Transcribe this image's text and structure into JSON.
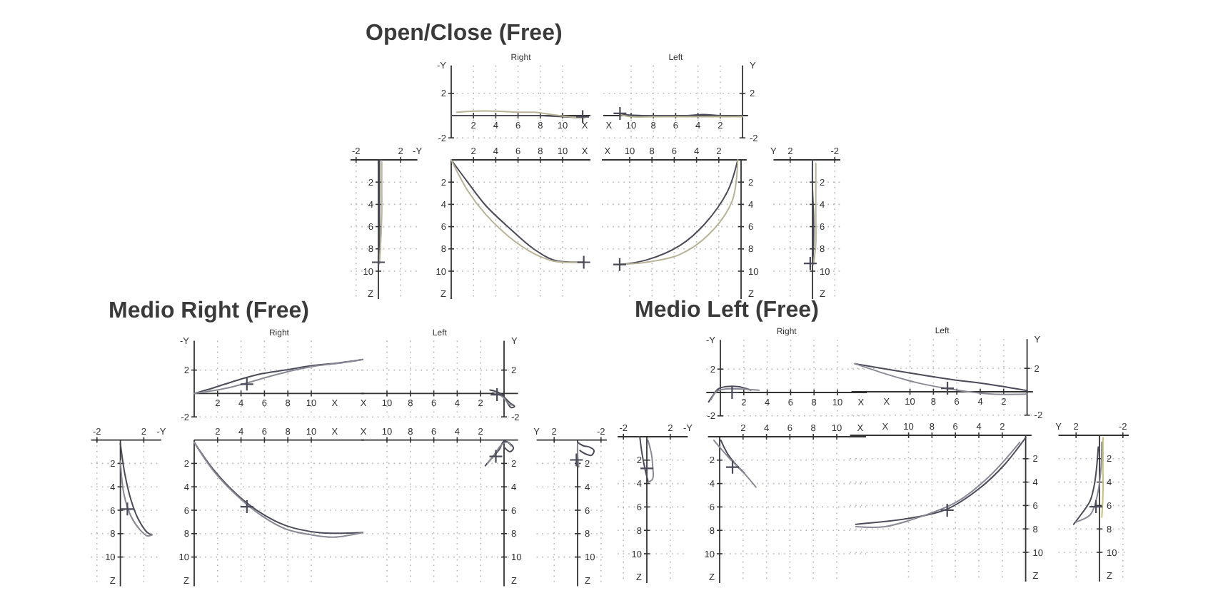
{
  "chart_data": [
    {
      "type": "line",
      "title": "Open/Close (Free)",
      "subtitle": "Right",
      "xlabel": "X",
      "ylabel": "-Y",
      "xlim": [
        0,
        12.5
      ],
      "ylim": [
        -2,
        4.5
      ],
      "xticks": [
        2,
        4,
        6,
        8,
        10
      ],
      "yticks": [
        -2,
        2
      ],
      "grid": true,
      "series": [
        {
          "color": "#4b4b5a",
          "x": [
            0,
            2,
            4,
            6,
            8,
            10,
            12
          ],
          "values": [
            0,
            0,
            0,
            0,
            0,
            -0.1,
            -0.2
          ]
        },
        {
          "color": "#b8b296",
          "x": [
            0.5,
            2,
            4,
            6,
            7.5,
            9,
            10.5,
            12
          ],
          "values": [
            0.3,
            0.4,
            0.4,
            0.3,
            0.3,
            0.1,
            -0.1,
            -0.2
          ]
        },
        {
          "type": "scatter",
          "marker": "cross",
          "color": "#4b4b5a",
          "x": [
            11.8
          ],
          "values": [
            -0.1
          ]
        }
      ]
    },
    {
      "type": "line",
      "title": "Left",
      "xlabel": "X",
      "ylabel": "Y",
      "xlim": [
        12.5,
        -0.5
      ],
      "ylim": [
        -2,
        4.5
      ],
      "xticks": [
        10,
        8,
        6,
        4,
        2
      ],
      "yticks": [
        -2,
        2
      ],
      "grid": true,
      "series": [
        {
          "color": "#4b4b5a",
          "x": [
            0,
            2,
            3.5,
            5,
            7,
            9,
            11
          ],
          "values": [
            0,
            0,
            0.1,
            0,
            0,
            0,
            0.1
          ]
        },
        {
          "color": "#b8b296",
          "x": [
            0,
            2,
            4,
            6,
            8,
            10,
            11
          ],
          "values": [
            -0.1,
            -0.1,
            -0.1,
            -0.1,
            -0.1,
            -0.1,
            0.1
          ]
        },
        {
          "type": "scatter",
          "marker": "cross",
          "color": "#4b4b5a",
          "x": [
            11
          ],
          "values": [
            0.2
          ]
        }
      ]
    },
    {
      "type": "line",
      "xlabel": "-Y",
      "ylabel": "Z",
      "xlim": [
        -2.5,
        3.5
      ],
      "ylim": [
        12.5,
        0
      ],
      "xticks": [
        -2,
        2
      ],
      "yticks": [
        2,
        4,
        6,
        8,
        10
      ],
      "grid": true,
      "series": [
        {
          "color": "#4b4b5a",
          "x": [
            0.1,
            0.1,
            0.1,
            0.1,
            0
          ],
          "values": [
            0,
            2.5,
            5,
            7.5,
            9.5
          ]
        },
        {
          "color": "#b8b296",
          "x": [
            0.3,
            0.3,
            0.3,
            0.2,
            0.1
          ],
          "values": [
            0.2,
            2.5,
            5,
            7.5,
            9.3
          ]
        },
        {
          "type": "scatter",
          "marker": "cross",
          "color": "#4b4b5a",
          "x": [
            0
          ],
          "values": [
            9.2
          ]
        }
      ]
    },
    {
      "type": "line",
      "xlabel": "X",
      "ylabel": "Z",
      "xlim": [
        0,
        12.5
      ],
      "ylim": [
        12.5,
        0
      ],
      "xticks": [
        2,
        4,
        6,
        8,
        10
      ],
      "yticks": [
        2,
        4,
        6,
        8,
        10
      ],
      "grid": true,
      "series": [
        {
          "color": "#4b4b5a",
          "x": [
            0,
            1.4,
            3.1,
            5.3,
            7.4,
            9.2,
            11.9
          ],
          "values": [
            0,
            1.9,
            4.1,
            6.2,
            8,
            9,
            9.2
          ]
        },
        {
          "color": "#b8b296",
          "x": [
            0,
            1.5,
            3.1,
            5.3,
            7.4,
            9.2,
            11.9
          ],
          "values": [
            0,
            2.8,
            4.9,
            7,
            8.4,
            9.1,
            9.2
          ]
        },
        {
          "type": "scatter",
          "marker": "cross",
          "color": "#4b4b5a",
          "x": [
            11.9
          ],
          "values": [
            9.2
          ]
        }
      ]
    },
    {
      "type": "line",
      "xlabel": "X",
      "ylabel": "Z",
      "xlim": [
        12.5,
        -0.5
      ],
      "ylim": [
        12.5,
        0
      ],
      "xticks": [
        10,
        8,
        6,
        4,
        2
      ],
      "yticks": [
        2,
        4,
        6,
        8,
        10
      ],
      "grid": true,
      "series": [
        {
          "color": "#4b4b5a",
          "x": [
            0.3,
            1.2,
            3.3,
            5.5,
            8.5,
            10.9
          ],
          "values": [
            0,
            2.8,
            5.8,
            7.7,
            9,
            9.4
          ]
        },
        {
          "color": "#b8b296",
          "x": [
            0.3,
            0.8,
            2.9,
            5.5,
            8.5,
            10.9
          ],
          "values": [
            0,
            3.7,
            6.7,
            8.5,
            9.2,
            9.4
          ]
        },
        {
          "type": "scatter",
          "marker": "cross",
          "color": "#4b4b5a",
          "x": [
            10.9
          ],
          "values": [
            9.4
          ]
        }
      ]
    },
    {
      "type": "line",
      "xlabel": "Y",
      "ylabel": "Z",
      "xlim": [
        3.5,
        -2.5
      ],
      "ylim": [
        12.5,
        0
      ],
      "xticks": [
        2,
        -2
      ],
      "yticks": [
        2,
        4,
        6,
        8,
        10
      ],
      "grid": true,
      "series": [
        {
          "color": "#4b4b5a",
          "x": [
            0,
            0,
            -0.1,
            -0.1,
            0
          ],
          "values": [
            0,
            2.5,
            5,
            7.5,
            9.6
          ]
        },
        {
          "color": "#b8b296",
          "x": [
            -0.3,
            -0.3,
            -0.3,
            -0.3,
            -0.1
          ],
          "values": [
            0.3,
            2.5,
            5,
            7.5,
            9.4
          ]
        },
        {
          "type": "scatter",
          "marker": "cross",
          "color": "#4b4b5a",
          "x": [
            0.2
          ],
          "values": [
            9.3
          ]
        }
      ]
    },
    {
      "type": "line",
      "title": "Medio Right (Free)",
      "subtitle": "Right",
      "xlabel": "X",
      "ylabel": "-Y",
      "xlim": [
        0,
        14.5
      ],
      "ylim": [
        -2,
        4.5
      ],
      "xticks": [
        2,
        4,
        6,
        8,
        10
      ],
      "yticks": [
        -2,
        2
      ],
      "grid": true,
      "series": [
        {
          "color": "#4b4b5a",
          "x": [
            0,
            1.7,
            3.9,
            5.8,
            7.8,
            10.2,
            12.3,
            14.4
          ],
          "values": [
            0,
            0.5,
            1.2,
            1.7,
            2,
            2.4,
            2.6,
            2.9
          ]
        },
        {
          "color": "#8a8a96",
          "x": [
            0,
            2.5,
            4.5,
            6.6,
            8.6,
            10.7,
            12.5,
            14.4
          ],
          "values": [
            0,
            0.4,
            0.9,
            1.5,
            2,
            2.4,
            2.6,
            2.9
          ]
        },
        {
          "type": "scatter",
          "marker": "cross",
          "color": "#4b4b5a",
          "x": [
            4.5
          ],
          "values": [
            0.8
          ]
        }
      ]
    },
    {
      "type": "line",
      "title": "Left",
      "xlabel": "X",
      "ylabel": "Y",
      "xlim": [
        12.2,
        -1.2
      ],
      "ylim": [
        -2,
        4.5
      ],
      "xticks": [
        10,
        8,
        6,
        4,
        2
      ],
      "yticks": [
        -2,
        2
      ],
      "grid": true,
      "series": [
        {
          "color": "#4b4b5a",
          "x": [
            1.2,
            0.5,
            0,
            -0.5,
            -0.9,
            -0.6,
            -0.2
          ],
          "values": [
            0.3,
            0.1,
            -0.3,
            -0.8,
            -1.1,
            -1.2,
            -0.6
          ]
        },
        {
          "color": "#8a8a96",
          "x": [
            1,
            0.4,
            0,
            -0.4,
            -0.7
          ],
          "values": [
            0.1,
            -0.1,
            -0.4,
            -0.9,
            -1
          ]
        },
        {
          "type": "scatter",
          "marker": "cross",
          "color": "#4b4b5a",
          "x": [
            0.6
          ],
          "values": [
            -0.1
          ]
        }
      ]
    },
    {
      "type": "line",
      "xlabel": "-Y",
      "ylabel": "Z",
      "xlim": [
        -2.5,
        3.5
      ],
      "ylim": [
        12.5,
        0
      ],
      "xticks": [
        -2,
        2
      ],
      "yticks": [
        2,
        4,
        6,
        8,
        10
      ],
      "grid": true,
      "series": [
        {
          "color": "#4b4b5a",
          "x": [
            0,
            0.4,
            0.9,
            1.5,
            2.3,
            2.7
          ],
          "values": [
            0.3,
            3,
            5.1,
            6.7,
            7.9,
            8.1
          ]
        },
        {
          "color": "#8a8a96",
          "x": [
            0,
            0.3,
            0.9,
            1.7,
            2.3,
            2.7
          ],
          "values": [
            1.8,
            4.6,
            6.5,
            7.7,
            8.2,
            8.1
          ]
        },
        {
          "type": "scatter",
          "marker": "cross",
          "color": "#4b4b5a",
          "x": [
            0.6
          ],
          "values": [
            5.9
          ]
        }
      ]
    },
    {
      "type": "line",
      "xlabel": "X",
      "ylabel": "Z",
      "xlim": [
        0,
        14.5
      ],
      "ylim": [
        12.5,
        0
      ],
      "xticks": [
        2,
        4,
        6,
        8,
        10
      ],
      "yticks": [
        2,
        4,
        6,
        8,
        10
      ],
      "grid": true,
      "series": [
        {
          "color": "#4b4b5a",
          "x": [
            0,
            1.7,
            3.7,
            5.8,
            7.8,
            10.6,
            14.4
          ],
          "values": [
            0.2,
            2.6,
            4.7,
            6.3,
            7.3,
            7.9,
            7.9
          ]
        },
        {
          "color": "#8a8a96",
          "x": [
            0,
            1.7,
            3.7,
            5.8,
            7.8,
            10,
            11.9,
            14.4
          ],
          "values": [
            0.2,
            2.7,
            4.8,
            6.5,
            7.6,
            8.1,
            8.3,
            7.9
          ]
        },
        {
          "type": "scatter",
          "marker": "cross",
          "color": "#4b4b5a",
          "x": [
            4.5
          ],
          "values": [
            5.7
          ]
        }
      ]
    },
    {
      "type": "line",
      "xlabel": "X",
      "ylabel": "Z",
      "xlim": [
        12.2,
        -1.2
      ],
      "ylim": [
        12.5,
        0
      ],
      "xticks": [
        10,
        8,
        6,
        4,
        2
      ],
      "yticks": [
        2,
        4,
        6,
        8,
        10
      ],
      "grid": true,
      "series": [
        {
          "color": "#4b4b5a",
          "x": [
            1.6,
            1,
            0.4,
            0,
            -0.5,
            -0.8,
            -0.5,
            0
          ],
          "values": [
            2.2,
            1.5,
            0.8,
            0.1,
            0.3,
            0.7,
            1,
            0.6
          ]
        },
        {
          "color": "#8a8a96",
          "x": [
            1.4,
            0.8,
            0.2,
            -0.3,
            -0.6
          ],
          "values": [
            2,
            1.2,
            0.4,
            0.2,
            0.5
          ]
        },
        {
          "type": "scatter",
          "marker": "cross",
          "color": "#4b4b5a",
          "x": [
            0.7
          ],
          "values": [
            1.4
          ]
        }
      ]
    },
    {
      "type": "line",
      "xlabel": "Y",
      "ylabel": "Z",
      "xlim": [
        3.5,
        -2.5
      ],
      "ylim": [
        12.5,
        0
      ],
      "xticks": [
        2,
        -2
      ],
      "yticks": [
        2,
        4,
        6,
        8,
        10
      ],
      "grid": true,
      "series": [
        {
          "color": "#4b4b5a",
          "x": [
            0,
            -0.5,
            -1,
            -1.4,
            -1.2,
            -0.7,
            -0.2
          ],
          "values": [
            0.2,
            0.5,
            0.6,
            0.9,
            1.3,
            1.2,
            0.9
          ]
        },
        {
          "color": "#8a8a96",
          "x": [
            0,
            0,
            -0.1
          ],
          "values": [
            0.3,
            1.2,
            2.3
          ]
        },
        {
          "type": "scatter",
          "marker": "cross",
          "color": "#4b4b5a",
          "x": [
            0.1
          ],
          "values": [
            1.7
          ]
        }
      ]
    },
    {
      "type": "line",
      "title": "Medio Left (Free)",
      "subtitle": "Right",
      "xlabel": "X",
      "ylabel": "-Y",
      "xlim": [
        -1.2,
        12.5
      ],
      "ylim": [
        -2,
        4.5
      ],
      "xticks": [
        2,
        4,
        6,
        8,
        10
      ],
      "yticks": [
        -2,
        2
      ],
      "grid": true,
      "series": [
        {
          "color": "#4b4b5a",
          "x": [
            -1,
            -0.6,
            -0.2,
            0.5,
            1.5,
            2.6
          ],
          "values": [
            -0.8,
            -0.2,
            0.3,
            0.5,
            0.5,
            0.2
          ]
        },
        {
          "color": "#8a8a96",
          "x": [
            -0.8,
            -0.3,
            0.5,
            1.5,
            3.3
          ],
          "values": [
            -0.6,
            0.1,
            0.3,
            0.3,
            0.2
          ]
        },
        {
          "type": "scatter",
          "marker": "cross",
          "color": "#4b4b5a",
          "x": [
            1
          ],
          "values": [
            0
          ]
        }
      ]
    },
    {
      "type": "line",
      "title": "Left",
      "xlabel": "X",
      "ylabel": "Y",
      "xlim": [
        15,
        -0.5
      ],
      "ylim": [
        -2,
        4.5
      ],
      "xticks": [
        10,
        8,
        6,
        4,
        2
      ],
      "yticks": [
        -2,
        2
      ],
      "grid": true,
      "series": [
        {
          "color": "#4b4b5a",
          "x": [
            14.7,
            10,
            6.8,
            3,
            0
          ],
          "values": [
            2.4,
            1.6,
            1.1,
            0.6,
            0.1
          ]
        },
        {
          "color": "#8a8a96",
          "x": [
            14.7,
            12,
            9.5,
            7,
            5,
            3,
            0
          ],
          "values": [
            2.4,
            1.5,
            0.8,
            0.3,
            0,
            -0.2,
            -0.2
          ]
        },
        {
          "type": "scatter",
          "marker": "cross",
          "color": "#4b4b5a",
          "x": [
            6.8
          ],
          "values": [
            0.3
          ]
        }
      ]
    },
    {
      "type": "line",
      "xlabel": "-Y",
      "ylabel": "Z",
      "xlim": [
        -2.5,
        3.5
      ],
      "ylim": [
        12.5,
        0
      ],
      "xticks": [
        -2,
        2
      ],
      "yticks": [
        2,
        4,
        6,
        8,
        10
      ],
      "grid": true,
      "series": [
        {
          "color": "#4b4b5a",
          "x": [
            -0.6,
            -0.4,
            -0.1,
            0.1
          ],
          "values": [
            0,
            1.5,
            3,
            3.8
          ]
        },
        {
          "color": "#8a8a96",
          "x": [
            0.1,
            0.4,
            0.5,
            0.5,
            0.1
          ],
          "values": [
            0.3,
            1.5,
            2.5,
            3.6,
            3.9
          ]
        },
        {
          "type": "scatter",
          "marker": "cross",
          "color": "#4b4b5a",
          "x": [
            0
          ],
          "values": [
            2.7
          ]
        }
      ]
    },
    {
      "type": "line",
      "xlabel": "X",
      "ylabel": "Z",
      "xlim": [
        -1,
        12.5
      ],
      "ylim": [
        12.5,
        0
      ],
      "xticks": [
        2,
        4,
        6,
        8,
        10
      ],
      "yticks": [
        2,
        4,
        6,
        8,
        10
      ],
      "grid": true,
      "series": [
        {
          "color": "#4b4b5a",
          "x": [
            0.1,
            0.7,
            1.5,
            2.1
          ],
          "values": [
            0.3,
            1.5,
            2.5,
            3.1
          ]
        },
        {
          "color": "#8a8a96",
          "x": [
            -0.5,
            0.7,
            1.9,
            3.1
          ],
          "values": [
            0.3,
            1.7,
            2.9,
            4.3
          ]
        },
        {
          "type": "scatter",
          "marker": "cross",
          "color": "#4b4b5a",
          "x": [
            1.1
          ],
          "values": [
            2.6
          ]
        }
      ]
    },
    {
      "type": "line",
      "xlabel": "X",
      "ylabel": "Z",
      "xlim": [
        15,
        -0.5
      ],
      "ylim": [
        12.5,
        0
      ],
      "xticks": [
        10,
        8,
        6,
        4,
        2
      ],
      "yticks": [
        2,
        4,
        6,
        8,
        10
      ],
      "grid": true,
      "series": [
        {
          "color": "#4b4b5a",
          "x": [
            0,
            1.8,
            3.9,
            6.7,
            10,
            14.5
          ],
          "values": [
            0.2,
            2.5,
            4.5,
            6.3,
            7.1,
            7.6
          ]
        },
        {
          "color": "#8a8a96",
          "x": [
            0.5,
            3.1,
            5.9,
            8.8,
            12,
            14.5
          ],
          "values": [
            0.6,
            3.5,
            5.7,
            6.9,
            7.8,
            7.8
          ]
        },
        {
          "type": "scatter",
          "marker": "cross",
          "color": "#4b4b5a",
          "x": [
            6.7
          ],
          "values": [
            6.4
          ]
        }
      ]
    },
    {
      "type": "line",
      "xlabel": "Y",
      "ylabel": "Z",
      "xlim": [
        3.5,
        -2.5
      ],
      "ylim": [
        12.5,
        0
      ],
      "xticks": [
        2,
        -2
      ],
      "yticks": [
        2,
        4,
        6,
        8,
        10
      ],
      "grid": true,
      "series": [
        {
          "color": "#4b4b5a",
          "x": [
            0.1,
            0.4,
            0.8,
            1.6,
            2.2
          ],
          "values": [
            1,
            4,
            5.6,
            6.8,
            7.6
          ]
        },
        {
          "color": "#8a8a96",
          "x": [
            -0.2,
            -0.1,
            0.3,
            0.8,
            2
          ],
          "values": [
            0.6,
            3.2,
            5.6,
            6.8,
            7.4
          ]
        },
        {
          "color": "#c9c07a",
          "x": [
            -0.3,
            -0.3,
            -0.3,
            -0.2
          ],
          "values": [
            0.2,
            3,
            5,
            7
          ]
        },
        {
          "type": "scatter",
          "marker": "cross",
          "color": "#4b4b5a",
          "x": [
            0.3
          ],
          "values": [
            6.1
          ]
        }
      ]
    }
  ]
}
